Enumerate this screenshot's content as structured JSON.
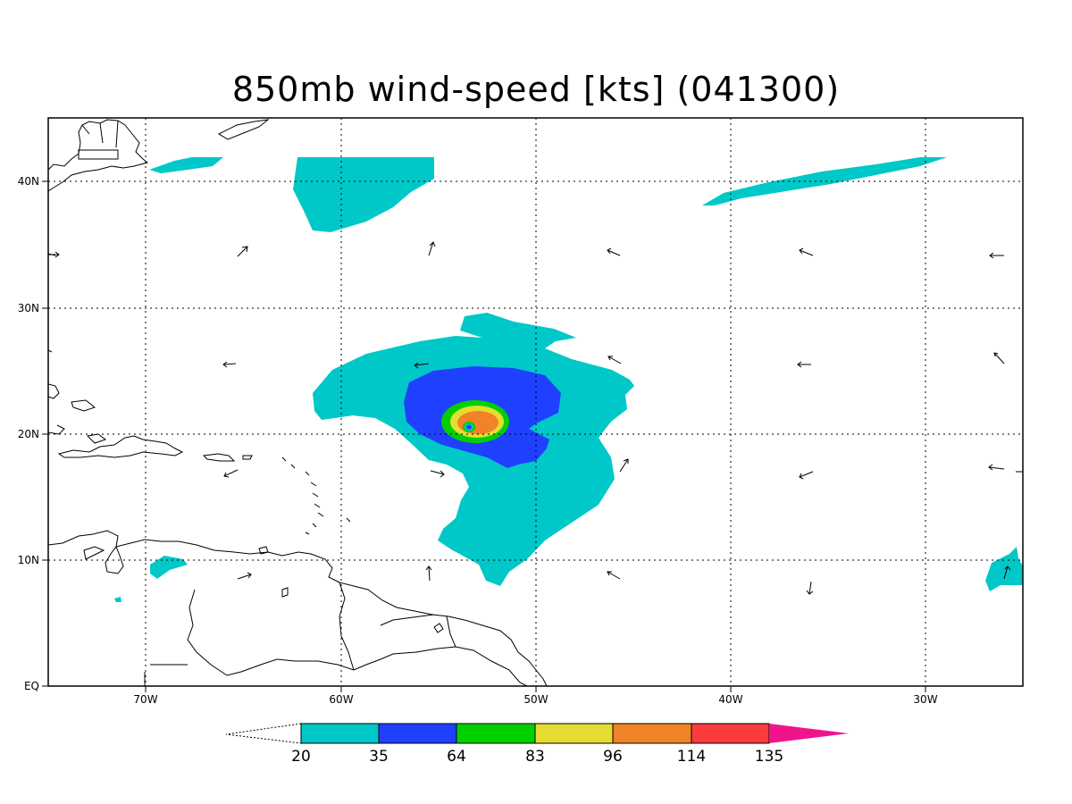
{
  "title": "850mb wind-speed [kts] (041300)",
  "axes": {
    "lat_labels": [
      "EQ",
      "10N",
      "20N",
      "30N",
      "40N"
    ],
    "lon_labels": [
      "70W",
      "60W",
      "50W",
      "40W",
      "30W"
    ]
  },
  "colorbar": {
    "labels": [
      "20",
      "35",
      "64",
      "83",
      "96",
      "114",
      "135"
    ],
    "colors": [
      "#00c8c8",
      "#2040ff",
      "#00d000",
      "#e6dc32",
      "#f08228",
      "#fa3c3c",
      "#f0148c"
    ]
  },
  "colors": {
    "land_outline": "#000000",
    "grid": "#000000",
    "cyan": "#00c8c8",
    "blue": "#2040ff",
    "green": "#00d000",
    "yellow": "#e6dc32",
    "orange": "#f08228"
  },
  "map": {
    "lon_range": [
      -75,
      -25
    ],
    "lat_range": [
      0,
      45
    ],
    "grid": true
  }
}
